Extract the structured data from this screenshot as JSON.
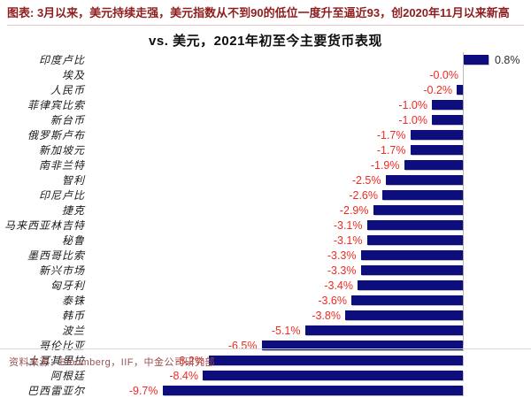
{
  "header": {
    "text": "图表: 3月以来，美元持续走强，美元指数从不到90的低位一度升至逼近93，创2020年11月以来新高"
  },
  "chart_title": "vs. 美元，2021年初至今主要货币表现",
  "footer": {
    "source_text": "资料来源：Bloomberg，IIF，中金公司研究部"
  },
  "colors": {
    "bar": "#0d0d7e",
    "negative_label": "#ee2b22",
    "positive_label": "#2e2e2e",
    "header_red": "#8e1d1d",
    "footer_red": "#9a5050",
    "axis_line": "#bdbdbd"
  },
  "chart_data": {
    "type": "bar",
    "orientation": "horizontal",
    "title": "vs. 美元，2021年初至今主要货币表现",
    "unit": "%",
    "value_axis_range": [
      -10.5,
      2.2
    ],
    "grid": false,
    "legend": false,
    "baseline": 0,
    "categories": [
      "印度卢比",
      "埃及",
      "人民币",
      "菲律宾比索",
      "新台币",
      "俄罗斯卢布",
      "新加坡元",
      "南非兰特",
      "智利",
      "印尼卢比",
      "捷克",
      "马来西亚林吉特",
      "秘鲁",
      "墨西哥比索",
      "新兴市场",
      "匈牙利",
      "泰铢",
      "韩币",
      "波兰",
      "哥伦比亚",
      "土耳其里拉",
      "阿根廷",
      "巴西雷亚尔"
    ],
    "values": [
      0.8,
      -0.0,
      -0.2,
      -1.0,
      -1.0,
      -1.7,
      -1.7,
      -1.9,
      -2.5,
      -2.6,
      -2.9,
      -3.1,
      -3.1,
      -3.3,
      -3.3,
      -3.4,
      -3.6,
      -3.8,
      -5.1,
      -6.5,
      -8.2,
      -8.4,
      -9.7
    ],
    "labels": [
      "0.8%",
      "-0.0%",
      "-0.2%",
      "-1.0%",
      "-1.0%",
      "-1.7%",
      "-1.7%",
      "-1.9%",
      "-2.5%",
      "-2.6%",
      "-2.9%",
      "-3.1%",
      "-3.1%",
      "-3.3%",
      "-3.3%",
      "-3.4%",
      "-3.6%",
      "-3.8%",
      "-5.1%",
      "-6.5%",
      "-8.2%",
      "-8.4%",
      "-9.7%"
    ]
  }
}
